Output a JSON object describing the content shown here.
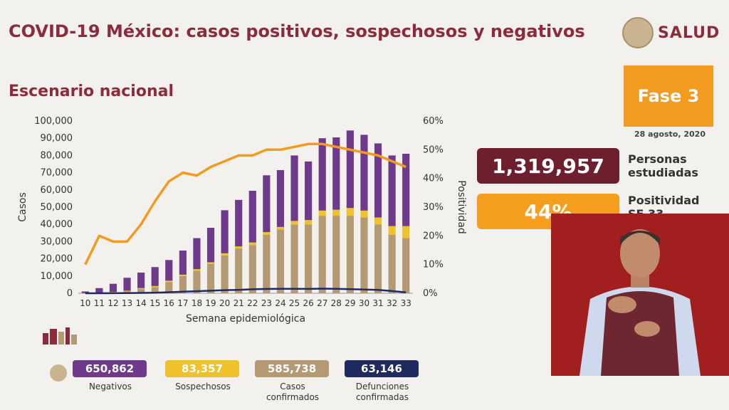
{
  "header": {
    "title": "COVID-19 México: casos positivos, sospechosos y negativos",
    "subtitle": "Escenario nacional",
    "brand": "SALUD",
    "brand_icon": "government-seal-icon"
  },
  "sidebar": {
    "fase": "Fase 3",
    "date": "28 agosto, 2020",
    "personas_value": "1,319,957",
    "personas_label_1": "Personas",
    "personas_label_2": "estudiadas",
    "positividad_value": "44%",
    "positividad_label_1": "Positividad",
    "positividad_label_2": "SE 33"
  },
  "stats": [
    {
      "value": "650,862",
      "label_1": "Negativos",
      "label_2": "",
      "color": "#6f3a8c"
    },
    {
      "value": "83,357",
      "label_1": "Sospechosos",
      "label_2": "",
      "color": "#efc12c"
    },
    {
      "value": "585,738",
      "label_1": "Casos",
      "label_2": "confirmados",
      "color": "#b49a72"
    },
    {
      "value": "63,146",
      "label_1": "Defunciones",
      "label_2": "confirmadas",
      "color": "#1f2a5e"
    }
  ],
  "colors": {
    "brand": "#8d2a3c",
    "negativos": "#6f3a8c",
    "sospechosos": "#efc12c",
    "confirmados": "#b49a72",
    "defunciones": "#1f2a5e",
    "positividad": "#f39b1f"
  },
  "chart_data": {
    "type": "bar",
    "stacked": true,
    "xlabel": "Semana epidemiológica",
    "ylabel": "Casos",
    "y2label": "Positividad",
    "ylim": [
      0,
      100000
    ],
    "y2lim": [
      0,
      60
    ],
    "yticks": [
      "0",
      "10,000",
      "20,000",
      "30,000",
      "40,000",
      "50,000",
      "60,000",
      "70,000",
      "80,000",
      "90,000",
      "100,000"
    ],
    "y2ticks": [
      "0%",
      "10%",
      "20%",
      "30%",
      "40%",
      "50%",
      "60%"
    ],
    "categories": [
      "10",
      "11",
      "12",
      "13",
      "14",
      "15",
      "16",
      "17",
      "18",
      "19",
      "20",
      "21",
      "22",
      "23",
      "24",
      "25",
      "26",
      "27",
      "28",
      "29",
      "30",
      "31",
      "32",
      "33"
    ],
    "series": [
      {
        "name": "Casos confirmados",
        "kind": "bar",
        "color": "#b49a72",
        "values": [
          100,
          300,
          600,
          1200,
          2500,
          3500,
          6500,
          10000,
          13000,
          17000,
          22000,
          26000,
          28000,
          34000,
          37000,
          40000,
          40000,
          45000,
          45000,
          45000,
          44000,
          40000,
          34000,
          32000
        ]
      },
      {
        "name": "Sospechosos",
        "kind": "bar",
        "color": "#efc12c",
        "values": [
          50,
          100,
          200,
          300,
          500,
          700,
          800,
          800,
          1000,
          1000,
          1200,
          1200,
          1500,
          1500,
          1500,
          2000,
          2500,
          3000,
          3500,
          4500,
          4000,
          4000,
          5000,
          7000
        ]
      },
      {
        "name": "Negativos",
        "kind": "bar",
        "color": "#6f3a8c",
        "values": [
          900,
          2600,
          4700,
          7500,
          9000,
          11000,
          12000,
          14000,
          18000,
          20000,
          25000,
          27000,
          30000,
          33000,
          33000,
          38000,
          34000,
          42000,
          42000,
          45000,
          44000,
          43000,
          41000,
          42000
        ]
      },
      {
        "name": "Defunciones confirmadas",
        "kind": "line",
        "axis": "y",
        "color": "#1f2a5e",
        "values": [
          0,
          10,
          30,
          80,
          200,
          350,
          600,
          900,
          1200,
          1500,
          1800,
          2000,
          2300,
          2500,
          2600,
          2600,
          2500,
          2700,
          2600,
          2400,
          2200,
          2000,
          1300,
          500
        ]
      },
      {
        "name": "Positividad",
        "kind": "line",
        "axis": "y2",
        "color": "#f39b1f",
        "values": [
          10,
          20,
          18,
          18,
          24,
          32,
          39,
          42,
          41,
          44,
          46,
          48,
          48,
          50,
          50,
          51,
          52,
          52,
          51,
          50,
          49,
          48,
          46,
          44
        ]
      }
    ]
  }
}
